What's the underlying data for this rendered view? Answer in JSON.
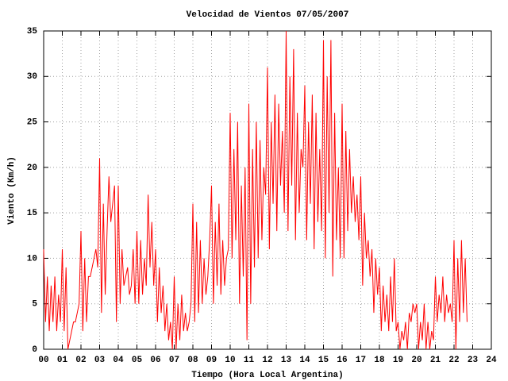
{
  "chart_data": {
    "type": "line",
    "title": "Velocidad de Vientos 07/05/2007",
    "xlabel": "Tiempo (Hora Local Argentina)",
    "ylabel": "Viento (Km/h)",
    "color": "#ff0000",
    "grid": true,
    "xlim": [
      0,
      24
    ],
    "ylim": [
      0,
      35
    ],
    "yticks": [
      0,
      5,
      10,
      15,
      20,
      25,
      30,
      35
    ],
    "xticks": [
      {
        "value": 0,
        "label": "00"
      },
      {
        "value": 1,
        "label": "01"
      },
      {
        "value": 2,
        "label": "02"
      },
      {
        "value": 3,
        "label": "03"
      },
      {
        "value": 4,
        "label": "04"
      },
      {
        "value": 5,
        "label": "05"
      },
      {
        "value": 6,
        "label": "06"
      },
      {
        "value": 7,
        "label": "07"
      },
      {
        "value": 8,
        "label": "08"
      },
      {
        "value": 9,
        "label": "09"
      },
      {
        "value": 10,
        "label": "10"
      },
      {
        "value": 11,
        "label": "11"
      },
      {
        "value": 12,
        "label": "12"
      },
      {
        "value": 13,
        "label": "13"
      },
      {
        "value": 14,
        "label": "14"
      },
      {
        "value": 15,
        "label": "15"
      },
      {
        "value": 16,
        "label": "16"
      },
      {
        "value": 17,
        "label": "17"
      },
      {
        "value": 18,
        "label": "18"
      },
      {
        "value": 19,
        "label": "19"
      },
      {
        "value": 20,
        "label": "20"
      },
      {
        "value": 21,
        "label": "21"
      },
      {
        "value": 22,
        "label": "22"
      },
      {
        "value": 23,
        "label": "23"
      },
      {
        "value": 24,
        "label": "24"
      }
    ],
    "x": [
      0.0,
      0.1,
      0.2,
      0.3,
      0.4,
      0.5,
      0.6,
      0.7,
      0.8,
      0.9,
      1.0,
      1.1,
      1.2,
      1.3,
      1.4,
      1.5,
      1.6,
      1.7,
      1.8,
      1.9,
      2.0,
      2.1,
      2.2,
      2.3,
      2.4,
      2.5,
      2.6,
      2.7,
      2.8,
      2.9,
      3.0,
      3.1,
      3.2,
      3.3,
      3.4,
      3.5,
      3.6,
      3.7,
      3.8,
      3.9,
      4.0,
      4.1,
      4.2,
      4.3,
      4.4,
      4.5,
      4.6,
      4.7,
      4.8,
      4.9,
      5.0,
      5.1,
      5.2,
      5.3,
      5.4,
      5.5,
      5.6,
      5.7,
      5.8,
      5.9,
      6.0,
      6.1,
      6.2,
      6.3,
      6.4,
      6.5,
      6.6,
      6.7,
      6.8,
      6.9,
      7.0,
      7.1,
      7.2,
      7.3,
      7.4,
      7.5,
      7.6,
      7.7,
      7.8,
      7.9,
      8.0,
      8.1,
      8.2,
      8.3,
      8.4,
      8.5,
      8.6,
      8.7,
      8.8,
      8.9,
      9.0,
      9.1,
      9.2,
      9.3,
      9.4,
      9.5,
      9.6,
      9.7,
      9.8,
      9.9,
      10.0,
      10.1,
      10.2,
      10.3,
      10.4,
      10.5,
      10.6,
      10.7,
      10.8,
      10.9,
      11.0,
      11.1,
      11.2,
      11.3,
      11.4,
      11.5,
      11.6,
      11.7,
      11.8,
      11.9,
      12.0,
      12.1,
      12.2,
      12.3,
      12.4,
      12.5,
      12.6,
      12.7,
      12.8,
      12.9,
      13.0,
      13.1,
      13.2,
      13.3,
      13.4,
      13.5,
      13.6,
      13.7,
      13.8,
      13.9,
      14.0,
      14.1,
      14.2,
      14.3,
      14.4,
      14.5,
      14.6,
      14.7,
      14.8,
      14.9,
      15.0,
      15.1,
      15.2,
      15.3,
      15.4,
      15.5,
      15.6,
      15.7,
      15.8,
      15.9,
      16.0,
      16.1,
      16.2,
      16.3,
      16.4,
      16.5,
      16.6,
      16.7,
      16.8,
      16.9,
      17.0,
      17.1,
      17.2,
      17.3,
      17.4,
      17.5,
      17.6,
      17.7,
      17.8,
      17.9,
      18.0,
      18.1,
      18.2,
      18.3,
      18.4,
      18.5,
      18.6,
      18.7,
      18.8,
      18.9,
      19.0,
      19.1,
      19.2,
      19.3,
      19.4,
      19.5,
      19.6,
      19.7,
      19.8,
      19.9,
      20.0,
      20.1,
      20.2,
      20.3,
      20.4,
      20.5,
      20.6,
      20.7,
      20.8,
      20.9,
      21.0,
      21.1,
      21.2,
      21.3,
      21.4,
      21.5,
      21.6,
      21.7,
      21.8,
      21.9,
      22.0,
      22.1,
      22.2,
      22.3,
      22.4,
      22.5,
      22.6,
      22.7
    ],
    "values": [
      11,
      3,
      8,
      2,
      7,
      3,
      8,
      2,
      6,
      3,
      11,
      2,
      9,
      0,
      1,
      2,
      3,
      3,
      4,
      5,
      13,
      2,
      10,
      3,
      8,
      8,
      9,
      10,
      11,
      9,
      21,
      4,
      16,
      6,
      13,
      19,
      14,
      16,
      18,
      3,
      18,
      5,
      11,
      7,
      8,
      9,
      6,
      7,
      11,
      5,
      13,
      5,
      12,
      6,
      10,
      7,
      17,
      9,
      14,
      7,
      11,
      3,
      9,
      4,
      7,
      2,
      5,
      1,
      3,
      0,
      8,
      0,
      5,
      1,
      6,
      2,
      4,
      2,
      3,
      5,
      16,
      3,
      14,
      4,
      12,
      5,
      10,
      6,
      8,
      12,
      18,
      5,
      14,
      7,
      16,
      6,
      12,
      7,
      10,
      11,
      26,
      10,
      22,
      12,
      25,
      5,
      18,
      8,
      20,
      1,
      27,
      5,
      22,
      9,
      25,
      10,
      23,
      12,
      20,
      17,
      31,
      11,
      25,
      16,
      28,
      13,
      27,
      18,
      24,
      15,
      35,
      13,
      30,
      18,
      33,
      12,
      26,
      15,
      22,
      20,
      29,
      12,
      25,
      16,
      28,
      11,
      26,
      14,
      22,
      13,
      34,
      10,
      30,
      15,
      34,
      8,
      26,
      12,
      20,
      10,
      27,
      10,
      24,
      13,
      22,
      15,
      19,
      14,
      17,
      12,
      19,
      7,
      15,
      10,
      12,
      8,
      11,
      4,
      10,
      6,
      9,
      2,
      7,
      3,
      6,
      2,
      8,
      3,
      10,
      2,
      3,
      0,
      2,
      1,
      3,
      0,
      4,
      3,
      5,
      4,
      5,
      0,
      3,
      1,
      5,
      0,
      3,
      0,
      2,
      1,
      8,
      3,
      6,
      4,
      8,
      3,
      6,
      4,
      5,
      3,
      12,
      0,
      10,
      3,
      12,
      4,
      10,
      3
    ]
  }
}
